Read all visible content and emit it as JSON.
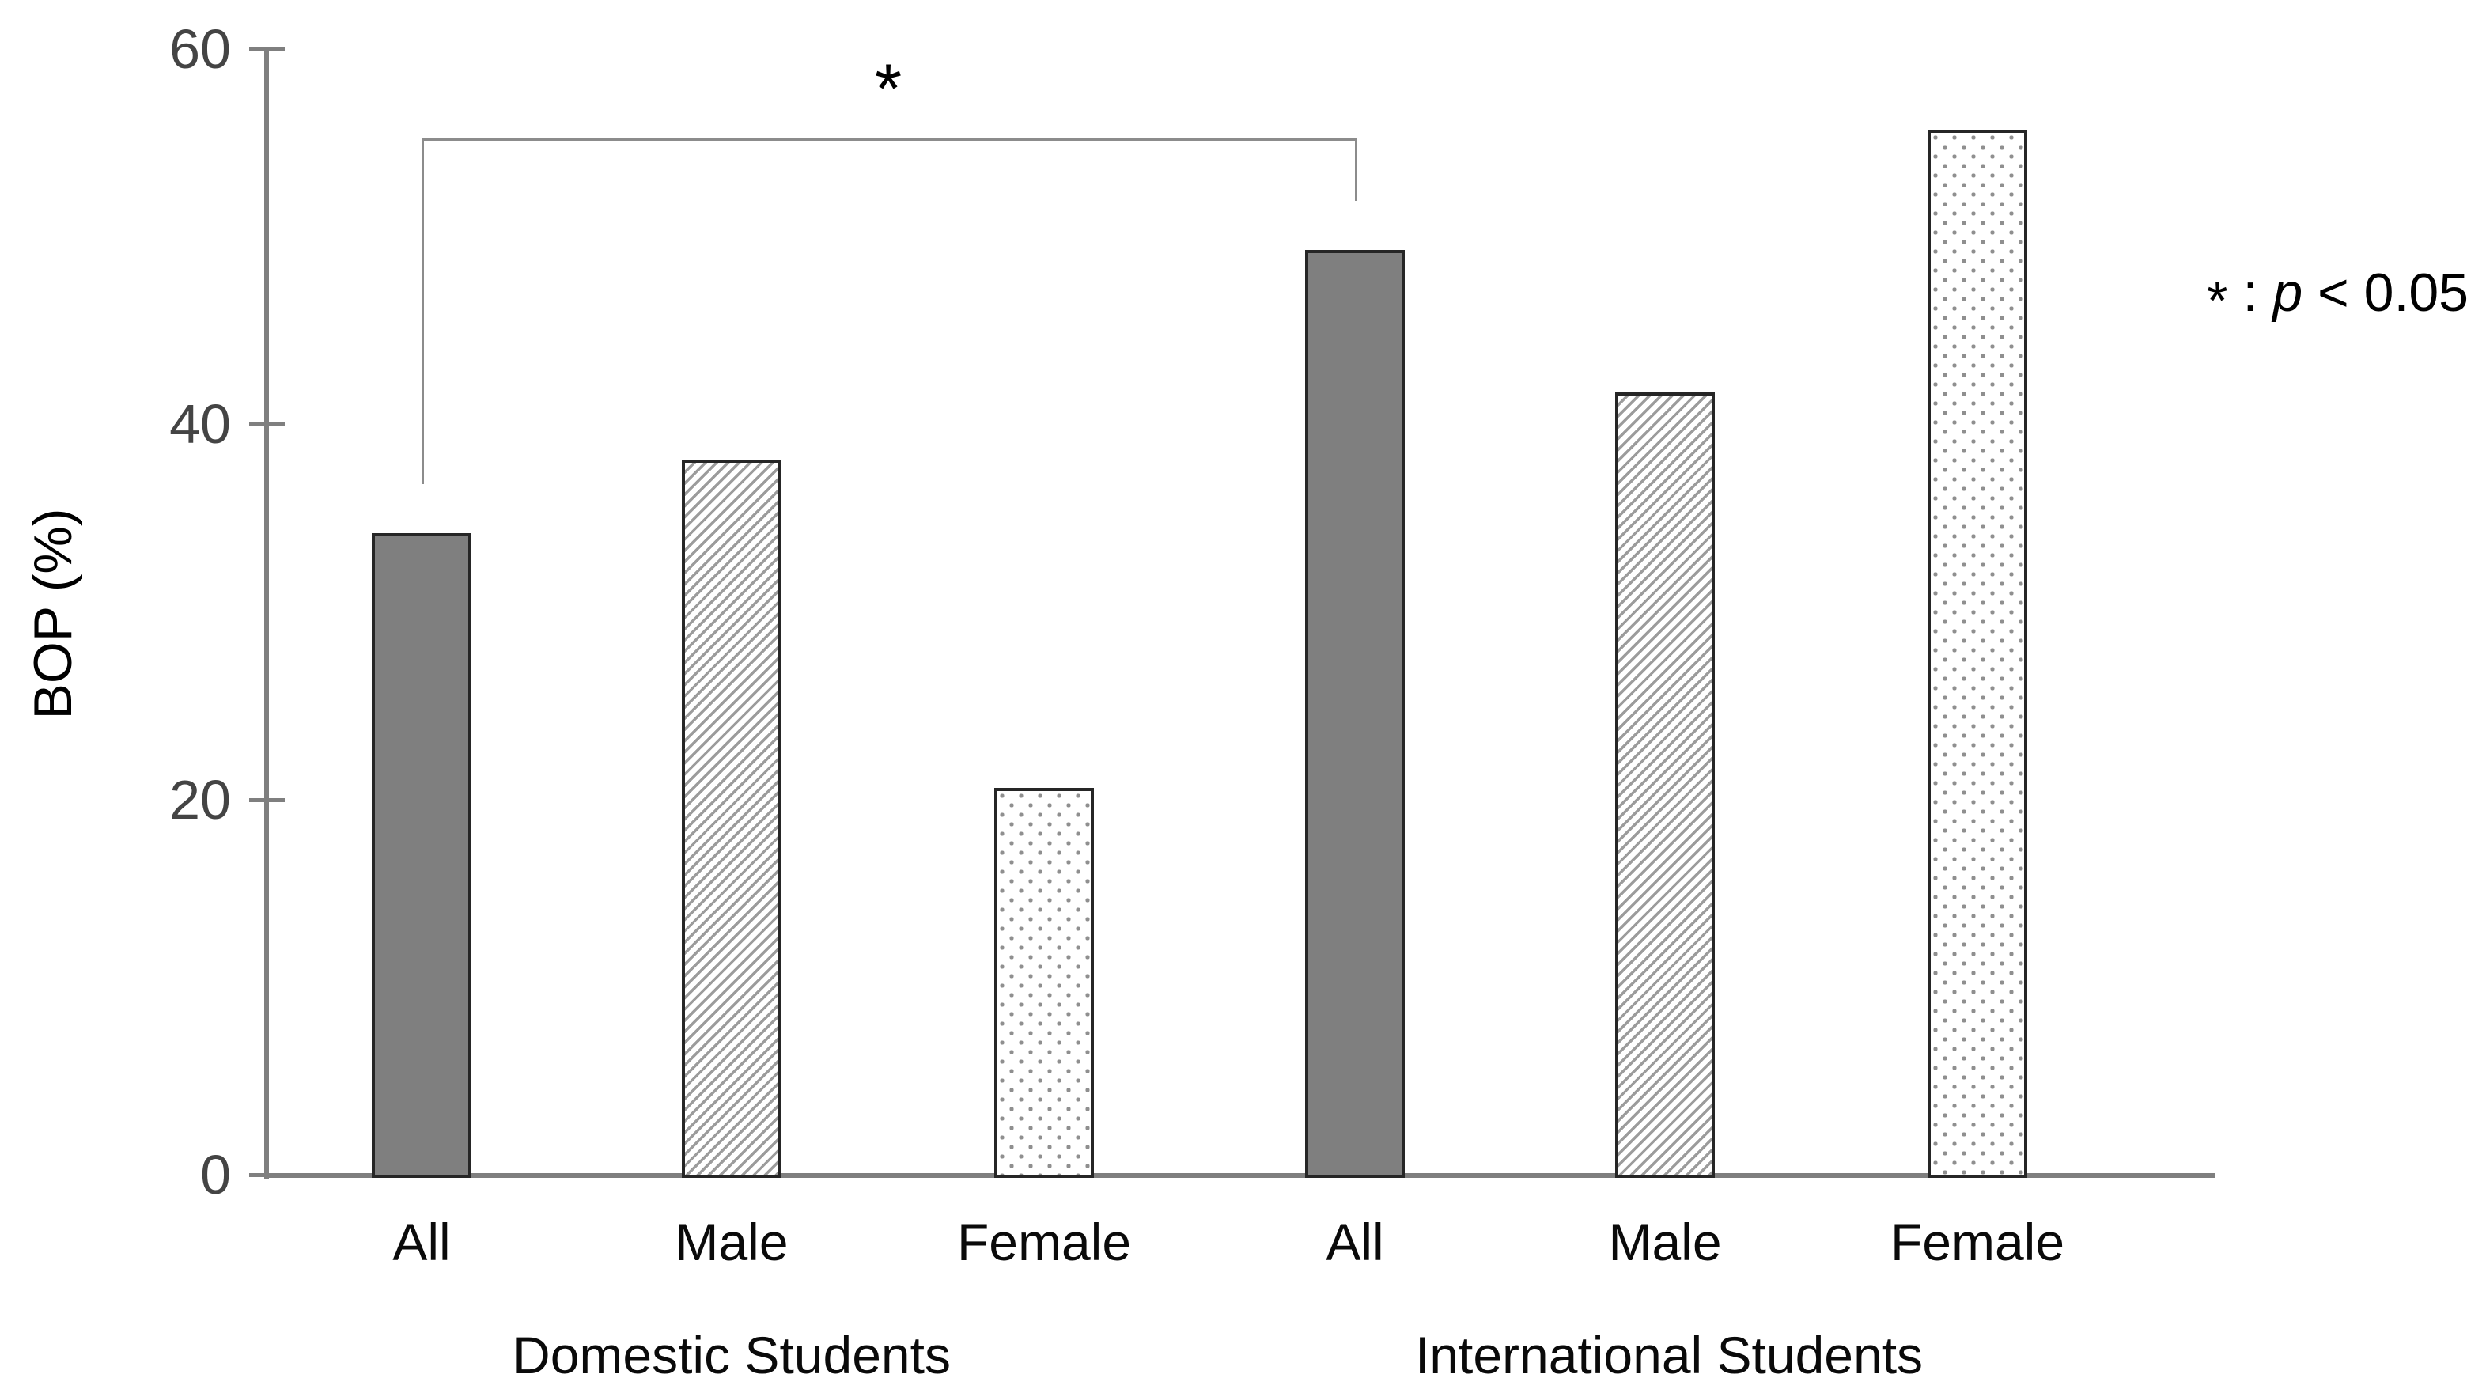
{
  "chart_data": {
    "type": "bar",
    "title": "",
    "ylabel": "BOP (%)",
    "ylim": [
      0,
      60
    ],
    "yticks": [
      0,
      20,
      40,
      60
    ],
    "grid": false,
    "legend_position": "none",
    "groups": [
      "Domestic Students",
      "International Students"
    ],
    "categories": [
      "All",
      "Male",
      "Female"
    ],
    "bars": [
      {
        "group": "Domestic Students",
        "label": "All",
        "value": 34.2,
        "pattern": "solid-gray"
      },
      {
        "group": "Domestic Students",
        "label": "Male",
        "value": 38.1,
        "pattern": "diagonal-hatch"
      },
      {
        "group": "Domestic Students",
        "label": "Female",
        "value": 20.6,
        "pattern": "dotted"
      },
      {
        "group": "International Students",
        "label": "All",
        "value": 49.3,
        "pattern": "solid-gray"
      },
      {
        "group": "International Students",
        "label": "Male",
        "value": 41.7,
        "pattern": "diagonal-hatch"
      },
      {
        "group": "International Students",
        "label": "Female",
        "value": 55.7,
        "pattern": "dotted"
      }
    ],
    "significance": {
      "symbol": "*",
      "between": [
        "Domestic Students / All",
        "International Students / All"
      ]
    },
    "annotation": {
      "star": "*",
      "colon": " : ",
      "p_symbol": "p",
      "suffix": " < 0.05"
    }
  },
  "colors": {
    "axis": "#7f7f7f",
    "bar_solid_fill": "#7f7f7f",
    "bar_border": "#262626",
    "hatch_line": "#9c9c9c",
    "dot": "#8f8f8f",
    "bracket": "#8c8c8c",
    "tick_text": "#444444",
    "label_text": "#0a0a0a"
  }
}
